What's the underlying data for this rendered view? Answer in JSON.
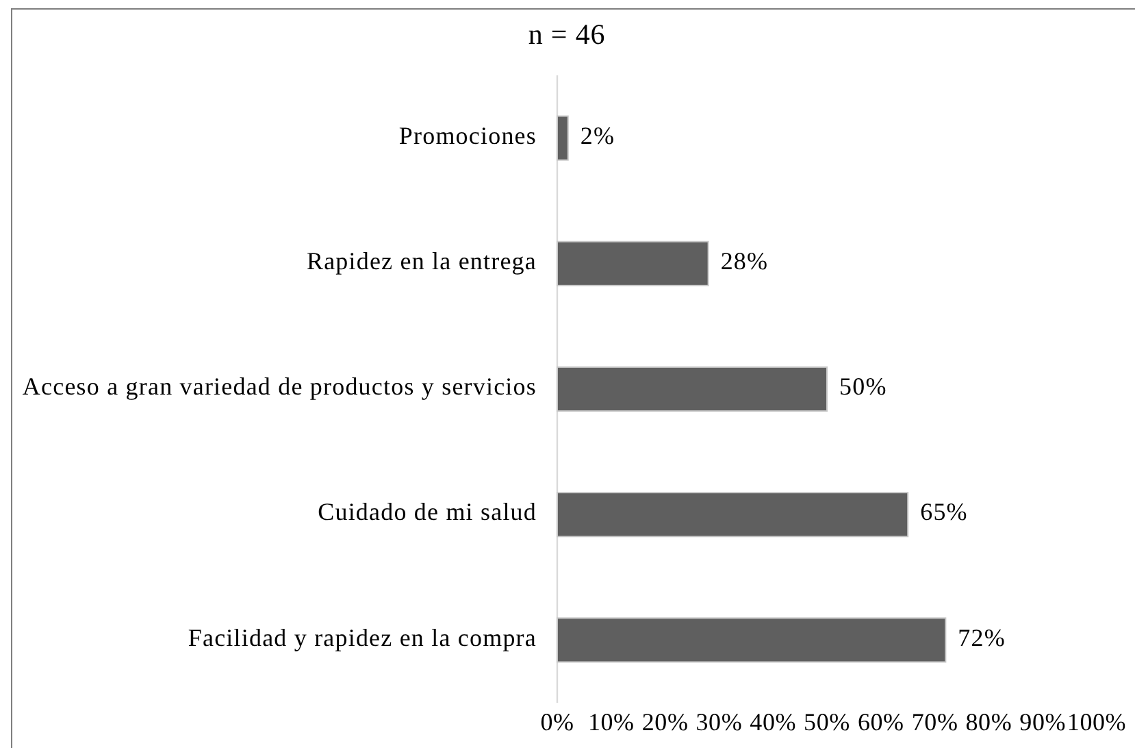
{
  "chart_data": {
    "type": "bar",
    "orientation": "horizontal",
    "title": "n = 46",
    "categories": [
      "Promociones",
      "Rapidez en la entrega",
      "Acceso a gran variedad de productos y servicios",
      "Cuidado de mi salud",
      "Facilidad y rapidez en la compra"
    ],
    "values": [
      2,
      28,
      50,
      65,
      72
    ],
    "value_labels": [
      "2%",
      "28%",
      "50%",
      "65%",
      "72%"
    ],
    "color": "#5f5f5f",
    "xlim": [
      0,
      100
    ],
    "xticks": [
      {
        "value": 0,
        "label": "0%"
      },
      {
        "value": 10,
        "label": "10%"
      },
      {
        "value": 20,
        "label": "20%"
      },
      {
        "value": 30,
        "label": "30%"
      },
      {
        "value": 40,
        "label": "40%"
      },
      {
        "value": 50,
        "label": "50%"
      },
      {
        "value": 60,
        "label": "60%"
      },
      {
        "value": 70,
        "label": "70%"
      },
      {
        "value": 80,
        "label": "80%"
      },
      {
        "value": 90,
        "label": "90%"
      },
      {
        "value": 100,
        "label": "100%"
      }
    ]
  }
}
